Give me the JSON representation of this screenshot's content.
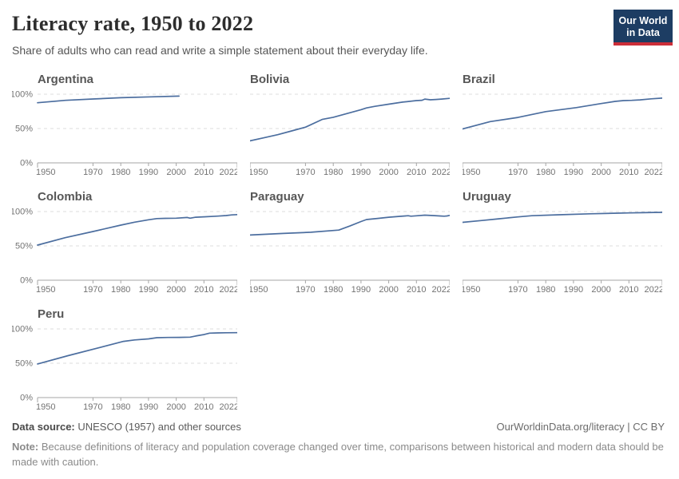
{
  "header": {
    "title": "Literacy rate, 1950 to 2022",
    "subtitle": "Share of adults who can read and write a simple statement about their everyday life.",
    "logo": {
      "line1": "Our World",
      "line2": "in Data",
      "bg_color": "#1d3d63",
      "bar_color": "#cc2e38"
    }
  },
  "chart_data": {
    "type": "line",
    "title": "Literacy rate, 1950 to 2022",
    "subtitle": "Share of adults who can read and write a simple statement about their everyday life.",
    "unit": "%",
    "x_range": [
      1950,
      2022
    ],
    "y_range": [
      0,
      100
    ],
    "x_ticks": [
      1950,
      1970,
      1980,
      1990,
      2000,
      2010,
      2022
    ],
    "y_ticks": [
      0,
      50,
      100
    ],
    "y_tick_labels": [
      "0%",
      "50%",
      "100%"
    ],
    "grid": "dashed horizontal",
    "legend_position": "none (small multiples, one series per facet)",
    "line_color": "#4c6e9f",
    "facets": [
      {
        "name": "Argentina",
        "show_y_labels": true,
        "points": [
          [
            1950,
            87.6
          ],
          [
            1960,
            91.0
          ],
          [
            1970,
            93.0
          ],
          [
            1980,
            94.9
          ],
          [
            1991,
            96.2
          ],
          [
            2001,
            97.2
          ]
        ]
      },
      {
        "name": "Bolivia",
        "show_y_labels": false,
        "points": [
          [
            1950,
            32.1
          ],
          [
            1955,
            36.5
          ],
          [
            1960,
            41.0
          ],
          [
            1965,
            46.5
          ],
          [
            1970,
            52.0
          ],
          [
            1976,
            63.2
          ],
          [
            1980,
            66.4
          ],
          [
            1985,
            71.9
          ],
          [
            1990,
            77.5
          ],
          [
            1992,
            80.0
          ],
          [
            1995,
            82.3
          ],
          [
            2000,
            85.5
          ],
          [
            2005,
            88.5
          ],
          [
            2010,
            90.7
          ],
          [
            2012,
            91.2
          ],
          [
            2013,
            92.9
          ],
          [
            2015,
            91.9
          ],
          [
            2017,
            92.3
          ],
          [
            2019,
            92.9
          ],
          [
            2022,
            93.9
          ]
        ]
      },
      {
        "name": "Brazil",
        "show_y_labels": false,
        "points": [
          [
            1950,
            49.4
          ],
          [
            1960,
            60.1
          ],
          [
            1970,
            66.2
          ],
          [
            1980,
            74.6
          ],
          [
            1991,
            80.5
          ],
          [
            2000,
            86.4
          ],
          [
            2005,
            89.5
          ],
          [
            2008,
            90.7
          ],
          [
            2011,
            91.0
          ],
          [
            2014,
            91.7
          ],
          [
            2018,
            93.2
          ],
          [
            2022,
            94.3
          ]
        ]
      },
      {
        "name": "Colombia",
        "show_y_labels": true,
        "points": [
          [
            1950,
            51.2
          ],
          [
            1960,
            62.0
          ],
          [
            1970,
            70.9
          ],
          [
            1980,
            80.2
          ],
          [
            1985,
            84.5
          ],
          [
            1990,
            88.0
          ],
          [
            1993,
            89.8
          ],
          [
            1996,
            90.1
          ],
          [
            2000,
            90.3
          ],
          [
            2004,
            91.4
          ],
          [
            2005,
            90.4
          ],
          [
            2007,
            91.8
          ],
          [
            2010,
            92.3
          ],
          [
            2015,
            93.4
          ],
          [
            2018,
            94.2
          ],
          [
            2020,
            95.1
          ],
          [
            2022,
            95.6
          ]
        ]
      },
      {
        "name": "Paraguay",
        "show_y_labels": false,
        "points": [
          [
            1950,
            65.8
          ],
          [
            1962,
            68.1
          ],
          [
            1972,
            69.9
          ],
          [
            1982,
            73.0
          ],
          [
            1986,
            79.0
          ],
          [
            1990,
            85.5
          ],
          [
            1992,
            88.4
          ],
          [
            1996,
            90.0
          ],
          [
            2000,
            91.7
          ],
          [
            2004,
            93.0
          ],
          [
            2007,
            93.9
          ],
          [
            2008,
            93.3
          ],
          [
            2010,
            93.8
          ],
          [
            2013,
            94.8
          ],
          [
            2016,
            94.2
          ],
          [
            2019,
            93.5
          ],
          [
            2020,
            93.2
          ],
          [
            2021,
            93.6
          ],
          [
            2022,
            94.4
          ]
        ]
      },
      {
        "name": "Uruguay",
        "show_y_labels": false,
        "points": [
          [
            1950,
            84.3
          ],
          [
            1957,
            87.0
          ],
          [
            1963,
            89.4
          ],
          [
            1970,
            92.2
          ],
          [
            1975,
            93.9
          ],
          [
            1985,
            95.4
          ],
          [
            1996,
            96.8
          ],
          [
            2006,
            97.7
          ],
          [
            2010,
            98.0
          ],
          [
            2015,
            98.4
          ],
          [
            2019,
            98.7
          ],
          [
            2022,
            98.8
          ]
        ]
      },
      {
        "name": "Peru",
        "show_y_labels": true,
        "points": [
          [
            1950,
            48.9
          ],
          [
            1961,
            61.1
          ],
          [
            1972,
            72.5
          ],
          [
            1981,
            81.9
          ],
          [
            1985,
            83.9
          ],
          [
            1990,
            85.5
          ],
          [
            1993,
            87.2
          ],
          [
            1997,
            87.6
          ],
          [
            2001,
            87.7
          ],
          [
            2005,
            88.0
          ],
          [
            2007,
            89.6
          ],
          [
            2010,
            91.8
          ],
          [
            2012,
            93.8
          ],
          [
            2015,
            94.2
          ],
          [
            2018,
            94.4
          ],
          [
            2022,
            94.5
          ]
        ]
      }
    ]
  },
  "footer": {
    "source_label": "Data source:",
    "source_text": " UNESCO (1957) and other sources",
    "link": "OurWorldinData.org/literacy | CC BY",
    "note_label": "Note:",
    "note_text": " Because definitions of literacy and population coverage changed over time, comparisons between historical and modern data should be made with caution."
  }
}
